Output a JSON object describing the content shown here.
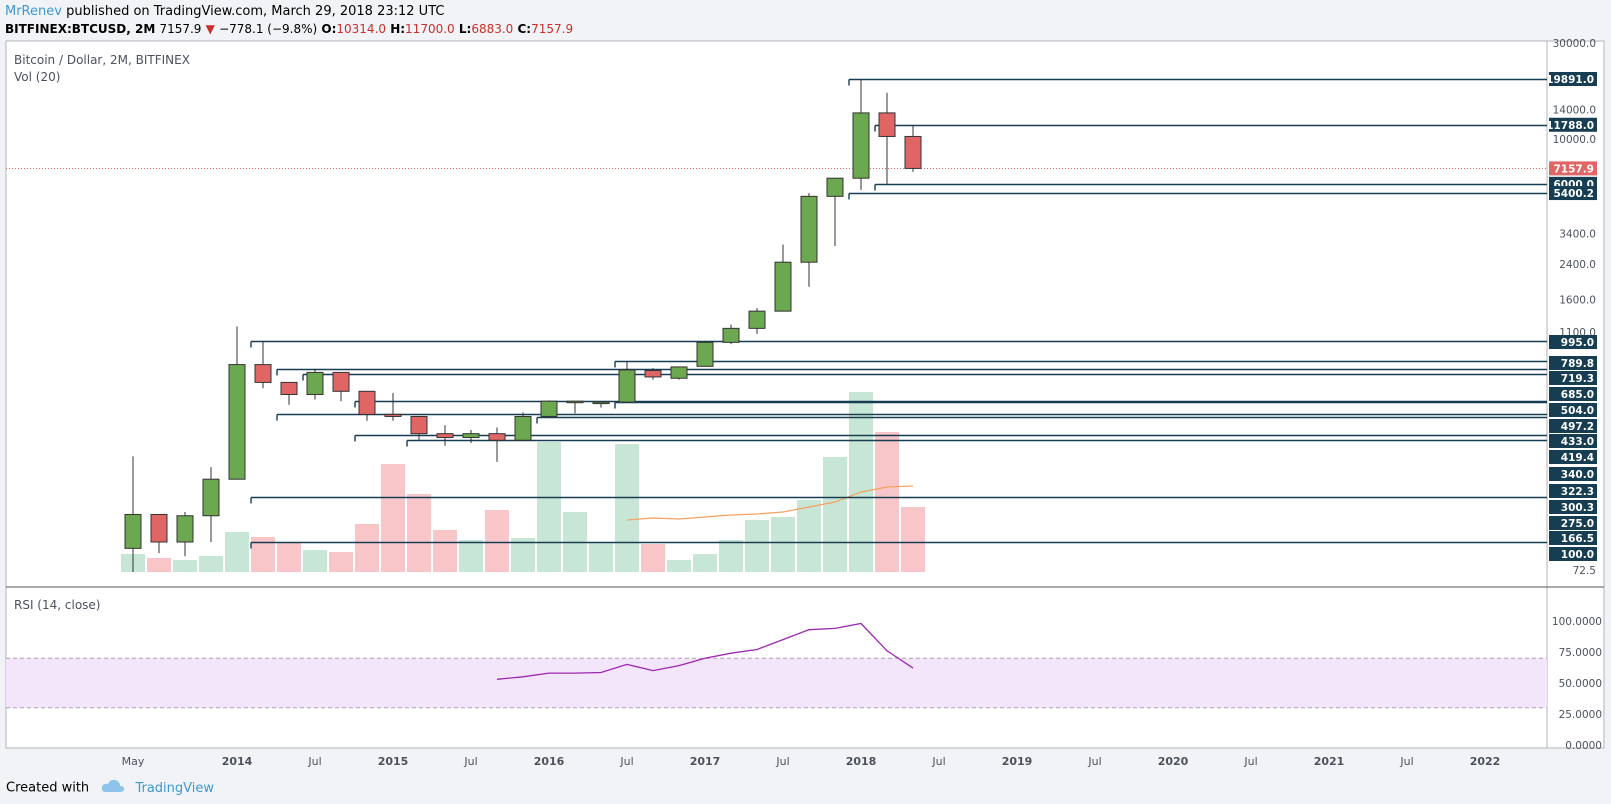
{
  "header": {
    "author": "MrRenev",
    "published": "published on TradingView.com, March 29, 2018 23:12 UTC",
    "symbol": "BITFINEX:BTCUSD, 2M",
    "last": "7157.9",
    "change": "−778.1 (−9.8%)",
    "open_label": "O:",
    "open": "10314.0",
    "high_label": "H:",
    "high": "11700.0",
    "low_label": "L:",
    "low": "6883.0",
    "close_label": "C:",
    "close": "7157.9"
  },
  "pane": {
    "title": "Bitcoin / Dollar, 2M, BITFINEX",
    "volume_label": "Vol (20)",
    "rsi_label": "RSI (14, close)"
  },
  "footer": {
    "created_with": "Created with",
    "brand": "TradingView"
  },
  "colors": {
    "up": "#6ba84f",
    "down": "#e06666",
    "up_vol": "#c8e6d6",
    "down_vol": "#f8c6c9",
    "level": "#173d52",
    "price": "#e06666",
    "rsi": "#9c27b0",
    "rsi_band": "#f3e5fa",
    "vol_ma": "#f5a15f"
  },
  "chart_data": [
    {
      "type": "candlestick",
      "title": "Bitcoin / Dollar, 2M, BITFINEX",
      "y_scale": "log",
      "ylim": [
        60,
        30000
      ],
      "price_ticks": [
        30000,
        14000,
        10000,
        3400,
        2400,
        1600,
        1100,
        72.5
      ],
      "x_ticks": [
        "May",
        "2014",
        "Jul",
        "2015",
        "Jul",
        "2016",
        "Jul",
        "2017",
        "Jul",
        "2018",
        "Jul",
        "2019",
        "Jul",
        "2020",
        "Jul",
        "2021",
        "Jul",
        "2022"
      ],
      "last_price": 7157.9,
      "candles": [
        {
          "date": "2013-04",
          "o": 93,
          "h": 266,
          "l": 50,
          "c": 137
        },
        {
          "date": "2013-06",
          "o": 137,
          "h": 137,
          "l": 88,
          "c": 100
        },
        {
          "date": "2013-08",
          "o": 100,
          "h": 141,
          "l": 85,
          "c": 135
        },
        {
          "date": "2013-10",
          "o": 135,
          "h": 235,
          "l": 100,
          "c": 205
        },
        {
          "date": "2013-12",
          "o": 205,
          "h": 1175,
          "l": 205,
          "c": 760
        },
        {
          "date": "2014-02",
          "o": 760,
          "h": 990,
          "l": 580,
          "c": 620
        },
        {
          "date": "2014-04",
          "o": 620,
          "h": 620,
          "l": 480,
          "c": 540
        },
        {
          "date": "2014-06",
          "o": 540,
          "h": 725,
          "l": 510,
          "c": 695
        },
        {
          "date": "2014-08",
          "o": 695,
          "h": 695,
          "l": 500,
          "c": 560
        },
        {
          "date": "2014-10",
          "o": 560,
          "h": 560,
          "l": 400,
          "c": 430
        },
        {
          "date": "2014-12",
          "o": 430,
          "h": 550,
          "l": 400,
          "c": 420
        },
        {
          "date": "2015-02",
          "o": 420,
          "h": 420,
          "l": 320,
          "c": 345
        },
        {
          "date": "2015-04",
          "o": 345,
          "h": 380,
          "l": 300,
          "c": 330
        },
        {
          "date": "2015-06",
          "o": 330,
          "h": 360,
          "l": 310,
          "c": 345
        },
        {
          "date": "2015-08",
          "o": 345,
          "h": 370,
          "l": 250,
          "c": 320
        },
        {
          "date": "2015-10",
          "o": 320,
          "h": 440,
          "l": 320,
          "c": 420
        },
        {
          "date": "2015-12",
          "o": 420,
          "h": 505,
          "l": 415,
          "c": 500
        },
        {
          "date": "2016-02",
          "o": 495,
          "h": 500,
          "l": 435,
          "c": 500
        },
        {
          "date": "2016-04",
          "o": 495,
          "h": 500,
          "l": 465,
          "c": 495
        },
        {
          "date": "2016-06",
          "o": 495,
          "h": 785,
          "l": 495,
          "c": 715
        },
        {
          "date": "2016-08",
          "o": 710,
          "h": 730,
          "l": 640,
          "c": 660
        },
        {
          "date": "2016-10",
          "o": 650,
          "h": 740,
          "l": 640,
          "c": 740
        },
        {
          "date": "2016-12",
          "o": 745,
          "h": 1000,
          "l": 745,
          "c": 980
        },
        {
          "date": "2017-02",
          "o": 980,
          "h": 1200,
          "l": 960,
          "c": 1150
        },
        {
          "date": "2017-04",
          "o": 1150,
          "h": 1450,
          "l": 1080,
          "c": 1400
        },
        {
          "date": "2017-06",
          "o": 1400,
          "h": 3000,
          "l": 1400,
          "c": 2450
        },
        {
          "date": "2017-08",
          "o": 2450,
          "h": 5400,
          "l": 1850,
          "c": 5200
        },
        {
          "date": "2017-10",
          "o": 5200,
          "h": 6400,
          "l": 2950,
          "c": 6400
        },
        {
          "date": "2017-12",
          "o": 6400,
          "h": 19891,
          "l": 5600,
          "c": 13500
        },
        {
          "date": "2018-02",
          "o": 13500,
          "h": 17000,
          "l": 6000,
          "c": 10314
        },
        {
          "date": "2018-04",
          "o": 10314,
          "h": 11700,
          "l": 6883,
          "c": 7157.9
        }
      ],
      "volume": [
        18,
        14,
        12,
        16,
        40,
        35,
        30,
        22,
        20,
        48,
        108,
        78,
        42,
        32,
        62,
        34,
        130,
        60,
        30,
        128,
        28,
        12,
        18,
        32,
        52,
        55,
        72,
        115,
        180,
        140,
        65
      ],
      "volume_ma": [
        null,
        null,
        null,
        null,
        null,
        null,
        null,
        null,
        null,
        null,
        null,
        null,
        null,
        null,
        null,
        null,
        null,
        null,
        null,
        52,
        54,
        53,
        55,
        57,
        58,
        60,
        65,
        70,
        80,
        85,
        86
      ],
      "levels": [
        {
          "value": 19891.0,
          "start": "2017-12"
        },
        {
          "value": 11788.0,
          "start": "2018-02"
        },
        {
          "value": 6000.0,
          "start": "2018-02"
        },
        {
          "value": 5400.2,
          "start": "2017-12"
        },
        {
          "value": 995.0,
          "start": "2014-02"
        },
        {
          "value": 789.8,
          "start": "2016-06"
        },
        {
          "value": 719.3,
          "start": "2014-04"
        },
        {
          "value": 685.0,
          "start": "2014-06"
        },
        {
          "value": 504.0,
          "start": "2014-10"
        },
        {
          "value": 497.2,
          "start": "2016-06"
        },
        {
          "value": 433.0,
          "start": "2014-04"
        },
        {
          "value": 419.4,
          "start": "2015-12"
        },
        {
          "value": 340.0,
          "start": "2014-10"
        },
        {
          "value": 322.3,
          "start": "2015-02"
        },
        {
          "value": 166.5,
          "start": "2014-02"
        },
        {
          "value": 100.0,
          "start": "2014-02"
        }
      ],
      "level_labels": [
        "19891.0",
        "11788.0",
        "7157.9",
        "6000.0",
        "5400.2",
        "995.0",
        "789.8",
        "719.3",
        "685.0",
        "504.0",
        "497.2",
        "433.0",
        "419.4",
        "340.0",
        "322.3",
        "300.3",
        "275.0",
        "166.5",
        "100.0",
        "72.5"
      ],
      "price_tick_labels": [
        "30000.0",
        "14000.0",
        "10000.0",
        "3400.0",
        "2400.0",
        "1600.0",
        "1100.0",
        "72.5"
      ]
    },
    {
      "type": "line",
      "title": "RSI (14, close)",
      "ylim": [
        0,
        100
      ],
      "y_ticks": [
        100,
        75,
        50,
        25,
        0
      ],
      "y_tick_labels": [
        "100.0000",
        "75.0000",
        "50.0000",
        "25.0000",
        "0.0000"
      ],
      "band": [
        30,
        70
      ],
      "x": [
        "2015-08",
        "2015-10",
        "2015-12",
        "2016-02",
        "2016-04",
        "2016-06",
        "2016-08",
        "2016-10",
        "2016-12",
        "2017-02",
        "2017-04",
        "2017-06",
        "2017-08",
        "2017-10",
        "2017-12",
        "2018-02",
        "2018-04"
      ],
      "values": [
        53,
        55,
        58,
        58,
        58.5,
        65,
        60,
        64,
        70,
        74,
        77,
        85,
        93,
        94,
        98,
        76,
        62
      ]
    }
  ]
}
